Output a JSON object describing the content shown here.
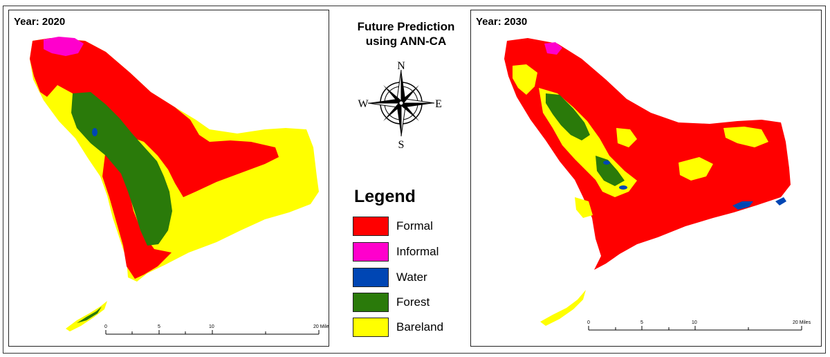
{
  "title_line1": "Future Prediction",
  "title_line2": "using ANN-CA",
  "compass": {
    "n": "N",
    "s": "S",
    "e": "E",
    "w": "W"
  },
  "legend": {
    "title": "Legend",
    "items": [
      {
        "label": "Formal",
        "color": "#ff0000"
      },
      {
        "label": "Informal",
        "color": "#ff00cc"
      },
      {
        "label": "Water",
        "color": "#0046b4"
      },
      {
        "label": "Forest",
        "color": "#2a7a0a"
      },
      {
        "label": "Bareland",
        "color": "#ffff00"
      }
    ]
  },
  "maps": [
    {
      "year_label": "Year: 2020"
    },
    {
      "year_label": "Year: 2030"
    }
  ],
  "scale": {
    "labels": [
      "0",
      "5",
      "10",
      "20 Miles"
    ]
  }
}
